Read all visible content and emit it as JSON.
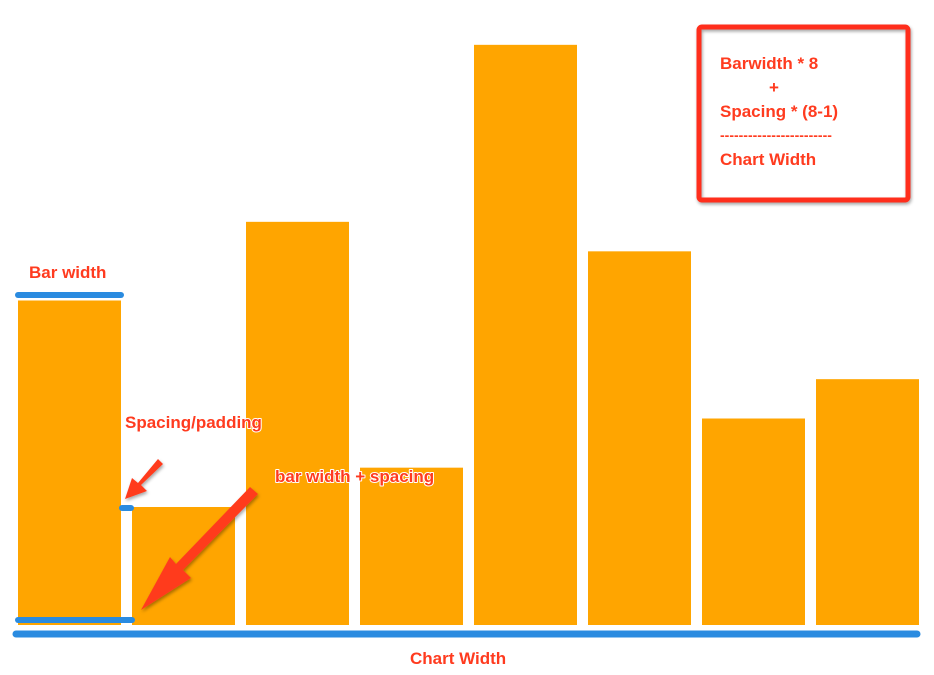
{
  "chart_data": {
    "type": "bar",
    "categories": [
      "",
      "",
      "",
      "",
      "",
      "",
      "",
      ""
    ],
    "values": [
      330,
      120,
      410,
      160,
      590,
      380,
      210,
      250
    ],
    "ylim": [
      0,
      600
    ],
    "grid": false,
    "bar_color": "#ffa500"
  },
  "annotations": {
    "bar_width": "Bar width",
    "spacing": "Spacing/padding",
    "bar_plus_spacing": "bar width + spacing",
    "chart_width": "Chart Width"
  },
  "formula": {
    "line1": "Barwidth * 8",
    "line2": "+",
    "line3": "Spacing * (8-1)",
    "line4": "------------------------",
    "line5": "Chart Width"
  },
  "colors": {
    "bar": "#ffa500",
    "label": "#ff3b1f",
    "measure": "#2a8be0",
    "arrow": "#ff3b1f",
    "box": "#ff2d1a"
  }
}
